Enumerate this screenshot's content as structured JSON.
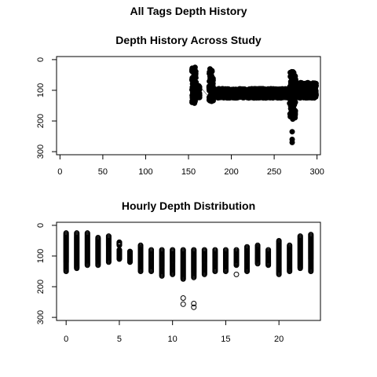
{
  "figure": {
    "title": "All Tags Depth History"
  },
  "chart_data": [
    {
      "type": "scatter",
      "title": "Depth History Across Study",
      "xlabel": "",
      "ylabel": "",
      "xlim": [
        0,
        300
      ],
      "ylim": [
        300,
        0
      ],
      "x_ticks": [
        0,
        50,
        100,
        150,
        200,
        250,
        300
      ],
      "y_ticks": [
        0,
        100,
        200,
        300
      ],
      "line_connected": true,
      "grid": false,
      "clusters": [
        {
          "x_range": [
            154,
            159
          ],
          "depth_range": [
            25,
            150
          ]
        },
        {
          "x_range": [
            160,
            163
          ],
          "depth_range": [
            85,
            125
          ]
        },
        {
          "x_range": [
            174,
            179
          ],
          "depth_range": [
            30,
            140
          ]
        },
        {
          "x_range": [
            180,
            270
          ],
          "depth_range": [
            95,
            125
          ]
        },
        {
          "x_range": [
            268,
            275
          ],
          "depth_range": [
            35,
            195
          ]
        },
        {
          "x_range": [
            274,
            299
          ],
          "depth_range": [
            75,
            125
          ]
        }
      ],
      "outliers": [
        {
          "x": 271,
          "y": 235
        },
        {
          "x": 271,
          "y": 260
        },
        {
          "x": 271,
          "y": 270
        }
      ]
    },
    {
      "type": "scatter",
      "title": "Hourly Depth Distribution",
      "xlabel": "",
      "ylabel": "",
      "xlim": [
        0,
        23
      ],
      "ylim": [
        300,
        0
      ],
      "x_ticks": [
        0,
        5,
        10,
        15,
        20
      ],
      "y_ticks": [
        0,
        100,
        200,
        300
      ],
      "grid": false,
      "hours": [
        {
          "hour": 0,
          "min": 25,
          "max": 150
        },
        {
          "hour": 1,
          "min": 25,
          "max": 140
        },
        {
          "hour": 2,
          "min": 25,
          "max": 130
        },
        {
          "hour": 3,
          "min": 40,
          "max": 130
        },
        {
          "hour": 4,
          "min": 35,
          "max": 120
        },
        {
          "hour": 5,
          "min": 55,
          "max": 65
        },
        {
          "hour": 5,
          "min": 80,
          "max": 110
        },
        {
          "hour": 6,
          "min": 85,
          "max": 120
        },
        {
          "hour": 7,
          "min": 65,
          "max": 150
        },
        {
          "hour": 8,
          "min": 80,
          "max": 150
        },
        {
          "hour": 9,
          "min": 80,
          "max": 165
        },
        {
          "hour": 10,
          "min": 80,
          "max": 160
        },
        {
          "hour": 11,
          "min": 80,
          "max": 175
        },
        {
          "hour": 12,
          "min": 80,
          "max": 170
        },
        {
          "hour": 13,
          "min": 80,
          "max": 160
        },
        {
          "hour": 14,
          "min": 80,
          "max": 150
        },
        {
          "hour": 15,
          "min": 80,
          "max": 150
        },
        {
          "hour": 16,
          "min": 80,
          "max": 130
        },
        {
          "hour": 17,
          "min": 70,
          "max": 150
        },
        {
          "hour": 18,
          "min": 65,
          "max": 125
        },
        {
          "hour": 19,
          "min": 80,
          "max": 130
        },
        {
          "hour": 20,
          "min": 50,
          "max": 160
        },
        {
          "hour": 21,
          "min": 65,
          "max": 150
        },
        {
          "hour": 22,
          "min": 35,
          "max": 140
        },
        {
          "hour": 23,
          "min": 30,
          "max": 150
        }
      ],
      "outliers": [
        {
          "hour": 11,
          "y": 237
        },
        {
          "hour": 11,
          "y": 257
        },
        {
          "hour": 12,
          "y": 255
        },
        {
          "hour": 12,
          "y": 267
        },
        {
          "hour": 16,
          "y": 160
        }
      ]
    }
  ]
}
